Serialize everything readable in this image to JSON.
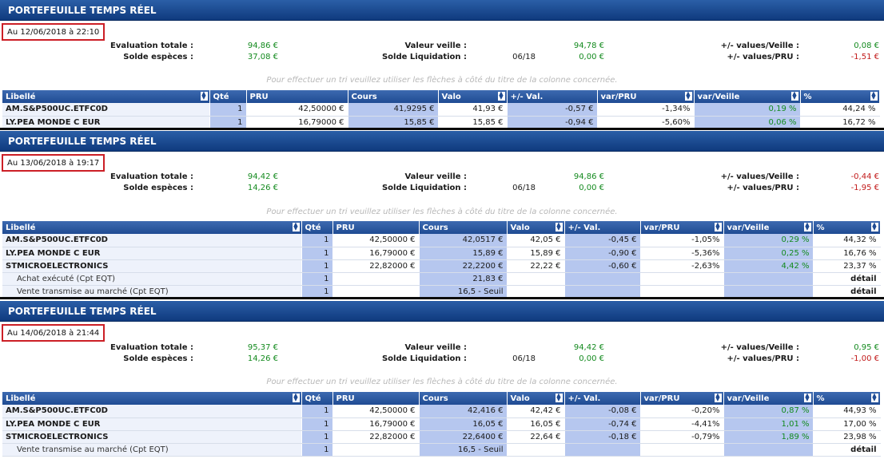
{
  "labels": {
    "title": "PORTEFEUILLE TEMPS RÉEL",
    "evaluation": "Evaluation totale :",
    "solde": "Solde espèces :",
    "veille": "Valeur veille :",
    "liquidation": "Solde Liquidation :",
    "pv_veille": "+/- values/Veille :",
    "pv_pru": "+/- values/PRU :",
    "hint": "Pour effectuer un tri veuillez utiliser les flèches à côté du titre de la colonne concernée."
  },
  "columns": [
    "Libellé",
    "Qté",
    "PRU",
    "Cours",
    "Valo",
    "+/- Val.",
    "var/PRU",
    "var/Veille",
    "%"
  ],
  "panels": [
    {
      "date": "Au 12/06/2018 à 22:10",
      "evaluation": "94,86 €",
      "solde": "37,08 €",
      "veille": "94,78 €",
      "liq_month": "06/18",
      "liquidation": "0,00 €",
      "pv_veille": "0,08 €",
      "pv_pru": "-1,51 €",
      "rows": [
        {
          "label": "AM.S&P500UC.ETFC0D",
          "qty": "1",
          "pru": "42,50000 €",
          "cours": "41,9295 €",
          "valo": "41,93 €",
          "pmv": "-0,57 €",
          "var_pru": "-1,34%",
          "var_veille": "0,19 %",
          "pct": "44,24 %"
        },
        {
          "label": "LY.PEA MONDE C EUR",
          "qty": "1",
          "pru": "16,79000 €",
          "cours": "15,85 €",
          "valo": "15,85 €",
          "pmv": "-0,94 €",
          "var_pru": "-5,60%",
          "var_veille": "0,06 %",
          "pct": "16,72 %"
        }
      ]
    },
    {
      "date": "Au 13/06/2018 à 19:17",
      "evaluation": "94,42 €",
      "solde": "14,26 €",
      "veille": "94,86 €",
      "liq_month": "06/18",
      "liquidation": "0,00 €",
      "pv_veille": "-0,44 €",
      "pv_pru": "-1,95 €",
      "rows": [
        {
          "label": "AM.S&P500UC.ETFC0D",
          "qty": "1",
          "pru": "42,50000 €",
          "cours": "42,0517 €",
          "valo": "42,05 €",
          "pmv": "-0,45 €",
          "var_pru": "-1,05%",
          "var_veille": "0,29 %",
          "pct": "44,32 %"
        },
        {
          "label": "LY.PEA MONDE C EUR",
          "qty": "1",
          "pru": "16,79000 €",
          "cours": "15,89 €",
          "valo": "15,89 €",
          "pmv": "-0,90 €",
          "var_pru": "-5,36%",
          "var_veille": "0,25 %",
          "pct": "16,76 %"
        },
        {
          "label": "STMICROELECTRONICS",
          "qty": "1",
          "pru": "22,82000 €",
          "cours": "22,2200 €",
          "valo": "22,22 €",
          "pmv": "-0,60 €",
          "var_pru": "-2,63%",
          "var_veille": "4,42 %",
          "pct": "23,37 %"
        }
      ],
      "subrows": [
        {
          "label": "Achat exécuté (Cpt EQT)",
          "qty": "1",
          "cours": "21,83 €",
          "pct": "détail"
        },
        {
          "label": "Vente transmise au marché (Cpt EQT)",
          "qty": "1",
          "cours": "16,5 - Seuil",
          "pct": "détail"
        }
      ]
    },
    {
      "date": "Au 14/06/2018 à 21:44",
      "evaluation": "95,37 €",
      "solde": "14,26 €",
      "veille": "94,42 €",
      "liq_month": "06/18",
      "liquidation": "0,00 €",
      "pv_veille": "0,95 €",
      "pv_pru": "-1,00 €",
      "rows": [
        {
          "label": "AM.S&P500UC.ETFC0D",
          "qty": "1",
          "pru": "42,50000 €",
          "cours": "42,416 €",
          "valo": "42,42 €",
          "pmv": "-0,08 €",
          "var_pru": "-0,20%",
          "var_veille": "0,87 %",
          "pct": "44,93 %"
        },
        {
          "label": "LY.PEA MONDE C EUR",
          "qty": "1",
          "pru": "16,79000 €",
          "cours": "16,05 €",
          "valo": "16,05 €",
          "pmv": "-0,74 €",
          "var_pru": "-4,41%",
          "var_veille": "1,01 %",
          "pct": "17,00 %"
        },
        {
          "label": "STMICROELECTRONICS",
          "qty": "1",
          "pru": "22,82000 €",
          "cours": "22,6400 €",
          "valo": "22,64 €",
          "pmv": "-0,18 €",
          "var_pru": "-0,79%",
          "var_veille": "1,89 %",
          "pct": "23,98 %"
        }
      ],
      "subrows": [
        {
          "label": "Vente transmise au marché (Cpt EQT)",
          "qty": "1",
          "cours": "16,5 - Seuil",
          "pct": "détail"
        }
      ]
    }
  ]
}
